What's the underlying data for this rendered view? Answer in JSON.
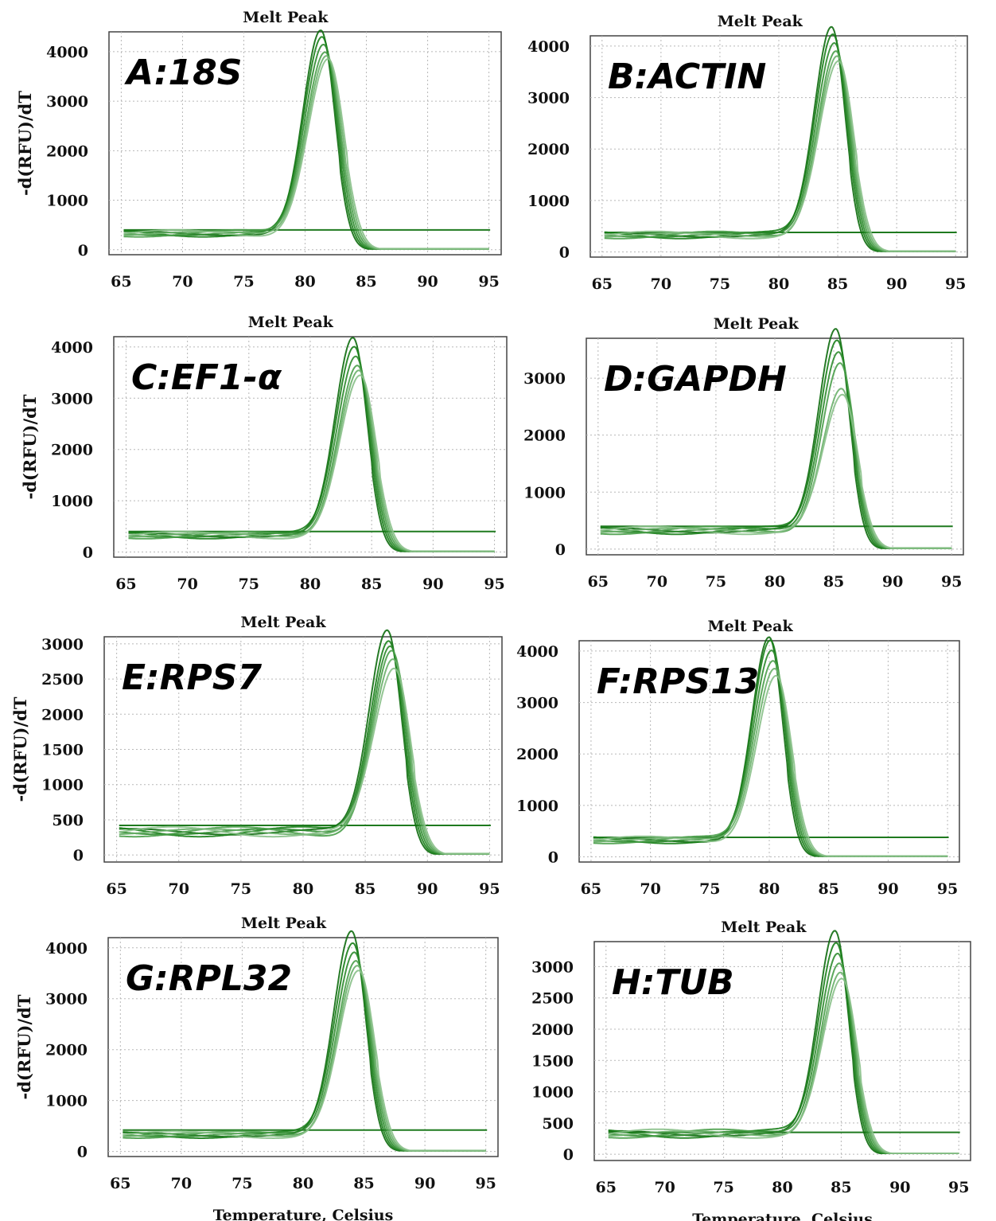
{
  "series_color": "#1f7f1f",
  "threshold_color": "#1f7a1f",
  "chart_data": [
    {
      "type": "line",
      "label": "A:18S",
      "title": "Melt Peak",
      "ylabel": "-d(RFU)/dT",
      "xlabel": "",
      "xlim": [
        64,
        96
      ],
      "ylim": [
        -100,
        4400
      ],
      "xticks": [
        65,
        70,
        75,
        80,
        85,
        90,
        95
      ],
      "yticks": [
        0,
        1000,
        2000,
        3000,
        4000
      ],
      "peak_center": 81.6,
      "peak_heights": [
        4100,
        3950,
        3850,
        3750,
        3650,
        3550
      ],
      "threshold": 400,
      "grid": true
    },
    {
      "type": "line",
      "label": "B:ACTIN",
      "title": "Melt Peak",
      "ylabel": "",
      "xlabel": "",
      "xlim": [
        64,
        96
      ],
      "ylim": [
        -100,
        4200
      ],
      "xticks": [
        65,
        70,
        75,
        80,
        85,
        90,
        95
      ],
      "yticks": [
        0,
        1000,
        2000,
        3000,
        4000
      ],
      "peak_center": 84.8,
      "peak_heights": [
        4050,
        3950,
        3800,
        3650,
        3500,
        3350
      ],
      "threshold": 380,
      "grid": true
    },
    {
      "type": "line",
      "label": "C:EF1-α",
      "title": "Melt Peak",
      "ylabel": "-d(RFU)/dT",
      "xlabel": "",
      "xlim": [
        64,
        96
      ],
      "ylim": [
        -100,
        4200
      ],
      "xticks": [
        65,
        70,
        75,
        80,
        85,
        90,
        95
      ],
      "yticks": [
        0,
        1000,
        2000,
        3000,
        4000
      ],
      "peak_center": 83.8,
      "peak_heights": [
        3850,
        3700,
        3550,
        3400,
        3250,
        3100
      ],
      "threshold": 400,
      "grid": true
    },
    {
      "type": "line",
      "label": "D:GAPDH",
      "title": "Melt Peak",
      "ylabel": "",
      "xlabel": "",
      "xlim": [
        64,
        96
      ],
      "ylim": [
        -100,
        3700
      ],
      "xticks": [
        65,
        70,
        75,
        80,
        85,
        90,
        95
      ],
      "yticks": [
        0,
        1000,
        2000,
        3000
      ],
      "peak_center": 85.5,
      "peak_heights": [
        3550,
        3400,
        3200,
        3000,
        2500,
        2350
      ],
      "threshold": 400,
      "grid": true
    },
    {
      "type": "line",
      "label": "E:RPS7",
      "title": "Melt Peak",
      "ylabel": "-d(RFU)/dT",
      "xlabel": "",
      "xlim": [
        64,
        96
      ],
      "ylim": [
        -100,
        3100
      ],
      "xticks": [
        65,
        70,
        75,
        80,
        85,
        90,
        95
      ],
      "yticks": [
        0,
        500,
        1000,
        1500,
        2000,
        2500,
        3000
      ],
      "peak_center": 87.1,
      "peak_heights": [
        2900,
        2800,
        2700,
        2600,
        2450,
        2300
      ],
      "threshold": 420,
      "grid": true
    },
    {
      "type": "line",
      "label": "F:RPS13",
      "title": "Melt Peak",
      "ylabel": "",
      "xlabel": "",
      "xlim": [
        64,
        96
      ],
      "ylim": [
        -100,
        4200
      ],
      "xticks": [
        65,
        70,
        75,
        80,
        85,
        90,
        95
      ],
      "yticks": [
        0,
        1000,
        2000,
        3000,
        4000
      ],
      "peak_center": 80.3,
      "peak_heights": [
        3950,
        3850,
        3700,
        3550,
        3400,
        3250
      ],
      "threshold": 380,
      "grid": true
    },
    {
      "type": "line",
      "label": "G:RPL32",
      "title": "Melt Peak",
      "ylabel": "-d(RFU)/dT",
      "xlabel": "Temperature, Celsius",
      "xlim": [
        64,
        96
      ],
      "ylim": [
        -100,
        4200
      ],
      "xticks": [
        65,
        70,
        75,
        80,
        85,
        90,
        95
      ],
      "yticks": [
        0,
        1000,
        2000,
        3000,
        4000
      ],
      "peak_center": 84.3,
      "peak_heights": [
        4000,
        3800,
        3650,
        3500,
        3350,
        3200
      ],
      "threshold": 420,
      "grid": true
    },
    {
      "type": "line",
      "label": "H:TUB",
      "title": "Melt Peak",
      "ylabel": "",
      "xlabel": "Temperature, Celsius",
      "xlim": [
        64,
        96
      ],
      "ylim": [
        -100,
        3400
      ],
      "xticks": [
        65,
        70,
        75,
        80,
        85,
        90,
        95
      ],
      "yticks": [
        0,
        500,
        1000,
        1500,
        2000,
        2500,
        3000
      ],
      "peak_center": 84.8,
      "peak_heights": [
        3250,
        3100,
        2950,
        2800,
        2600,
        2450
      ],
      "threshold": 350,
      "grid": true
    }
  ]
}
